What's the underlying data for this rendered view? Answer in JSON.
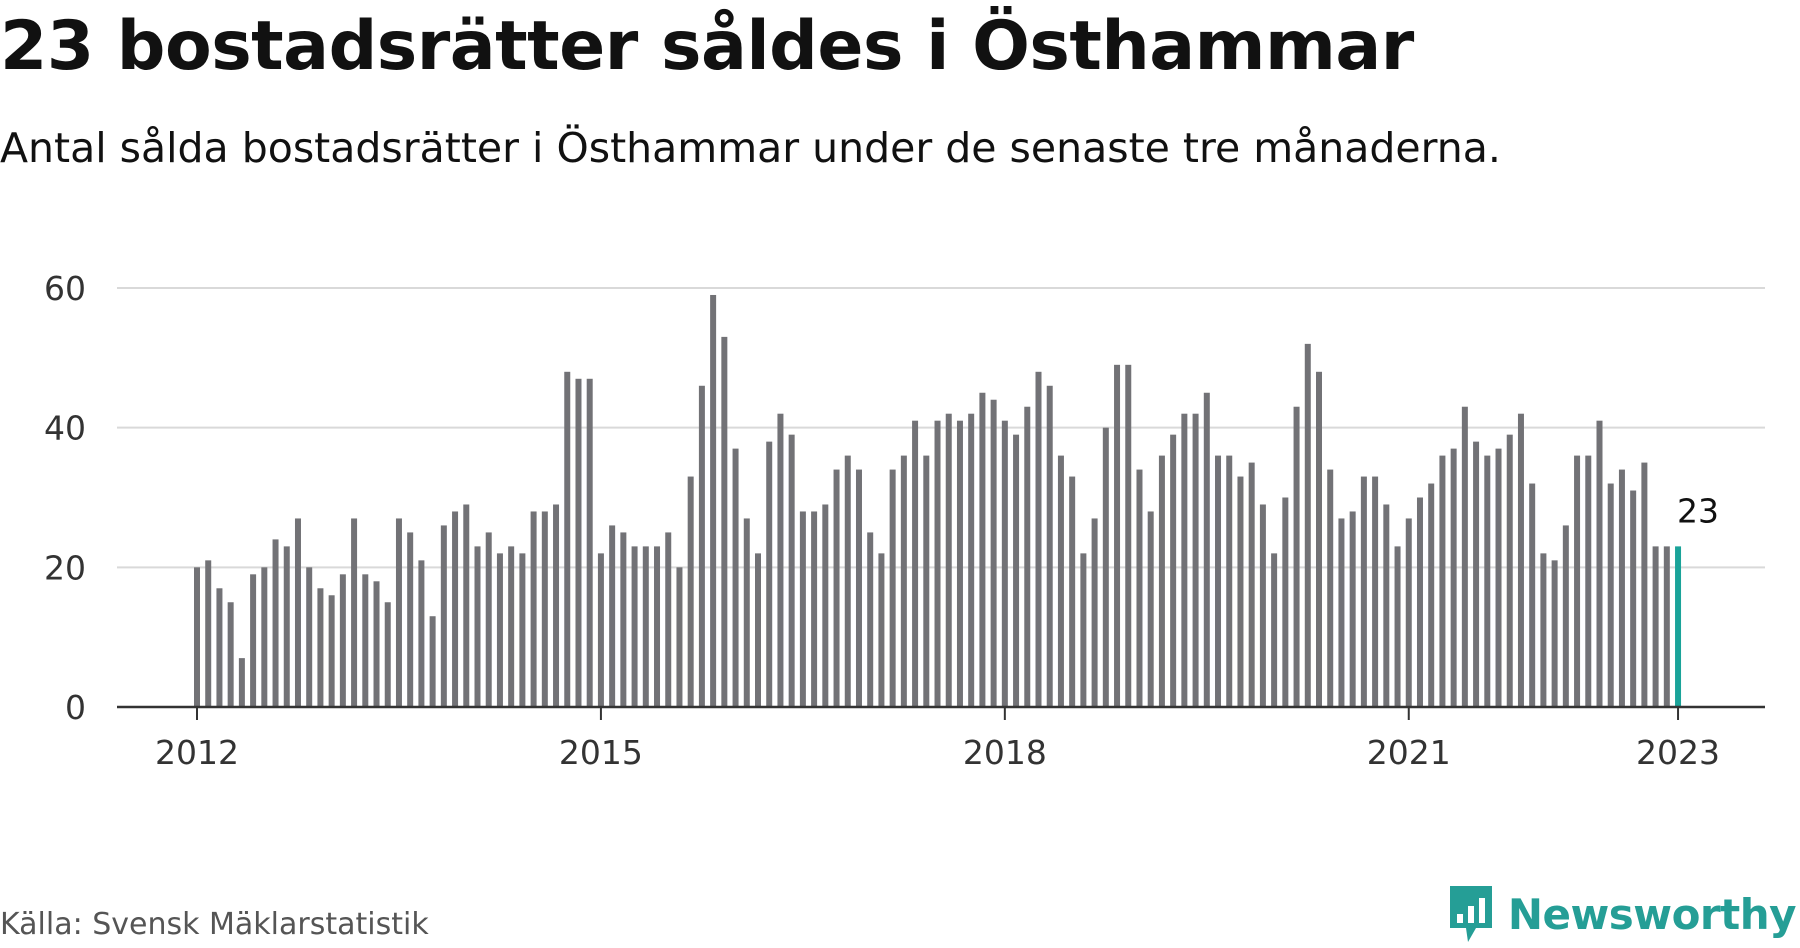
{
  "title": "23 bostadsrätter såldes i Östhammar",
  "subtitle": "Antal sålda bostadsrätter i Östhammar under de senaste tre månaderna.",
  "source": "Källa: Svensk Mäklarstatistik",
  "brand": {
    "name": "Newsworthy",
    "icon": "newsworthy-logo-icon",
    "color": "#259e96"
  },
  "colors": {
    "bar": "#727276",
    "highlight": "#1aa399",
    "grid": "#d9d9d9",
    "axis": "#333333"
  },
  "chart_data": {
    "type": "bar",
    "x_axis": "monthly, 2012-01 to 2023-01",
    "x_ticks": [
      "2012",
      "2015",
      "2018",
      "2021",
      "2023"
    ],
    "y_ticks": [
      "0",
      "20",
      "40",
      "60"
    ],
    "ylim": [
      0,
      60
    ],
    "grid": true,
    "values": [
      20,
      21,
      17,
      15,
      7,
      19,
      20,
      24,
      23,
      27,
      20,
      17,
      16,
      19,
      27,
      19,
      18,
      15,
      27,
      25,
      21,
      13,
      26,
      28,
      29,
      23,
      25,
      22,
      23,
      22,
      28,
      28,
      29,
      48,
      47,
      47,
      22,
      26,
      25,
      23,
      23,
      23,
      25,
      20,
      33,
      46,
      59,
      53,
      37,
      27,
      22,
      38,
      42,
      39,
      28,
      28,
      29,
      34,
      36,
      34,
      25,
      22,
      34,
      36,
      41,
      36,
      41,
      42,
      41,
      42,
      45,
      44,
      41,
      39,
      43,
      48,
      46,
      36,
      33,
      22,
      27,
      40,
      49,
      49,
      34,
      28,
      36,
      39,
      42,
      42,
      45,
      36,
      36,
      33,
      35,
      29,
      22,
      30,
      43,
      52,
      48,
      34,
      27,
      28,
      33,
      33,
      29,
      23,
      27,
      30,
      32,
      36,
      37,
      43,
      38,
      36,
      37,
      39,
      42,
      32,
      22,
      21,
      26,
      36,
      36,
      41,
      32,
      34,
      31,
      35,
      23,
      23,
      23
    ],
    "highlight_last": true,
    "last_value_label": "23"
  }
}
